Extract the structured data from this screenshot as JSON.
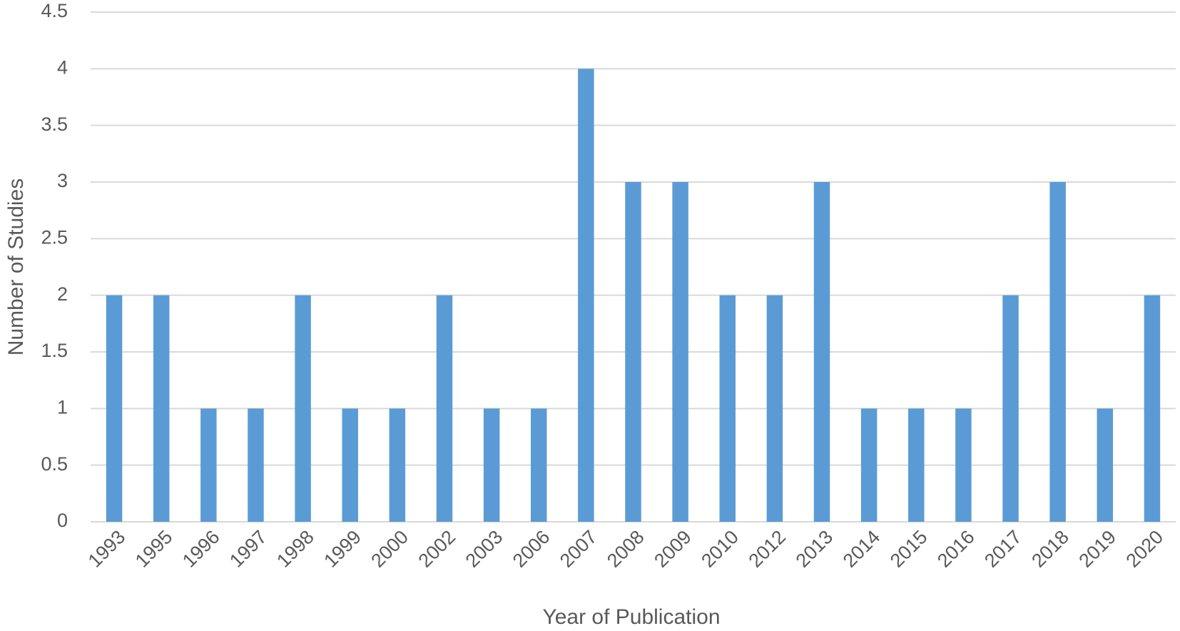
{
  "chart_data": {
    "type": "bar",
    "x_label": "Year of Publication",
    "y_label": "Number of Studies",
    "categories": [
      "1993",
      "1995",
      "1996",
      "1997",
      "1998",
      "1999",
      "2000",
      "2002",
      "2003",
      "2006",
      "2007",
      "2008",
      "2009",
      "2010",
      "2012",
      "2013",
      "2014",
      "2015",
      "2016",
      "2017",
      "2018",
      "2019",
      "2020"
    ],
    "values": [
      2,
      2,
      1,
      1,
      2,
      1,
      1,
      2,
      1,
      1,
      4,
      3,
      3,
      2,
      2,
      3,
      1,
      1,
      1,
      2,
      3,
      1,
      2
    ],
    "color": "#5b9bd5",
    "ylim": [
      0,
      4.5
    ],
    "yticks": [
      0,
      0.5,
      1,
      1.5,
      2,
      2.5,
      3,
      3.5,
      4,
      4.5
    ],
    "grid": true
  }
}
